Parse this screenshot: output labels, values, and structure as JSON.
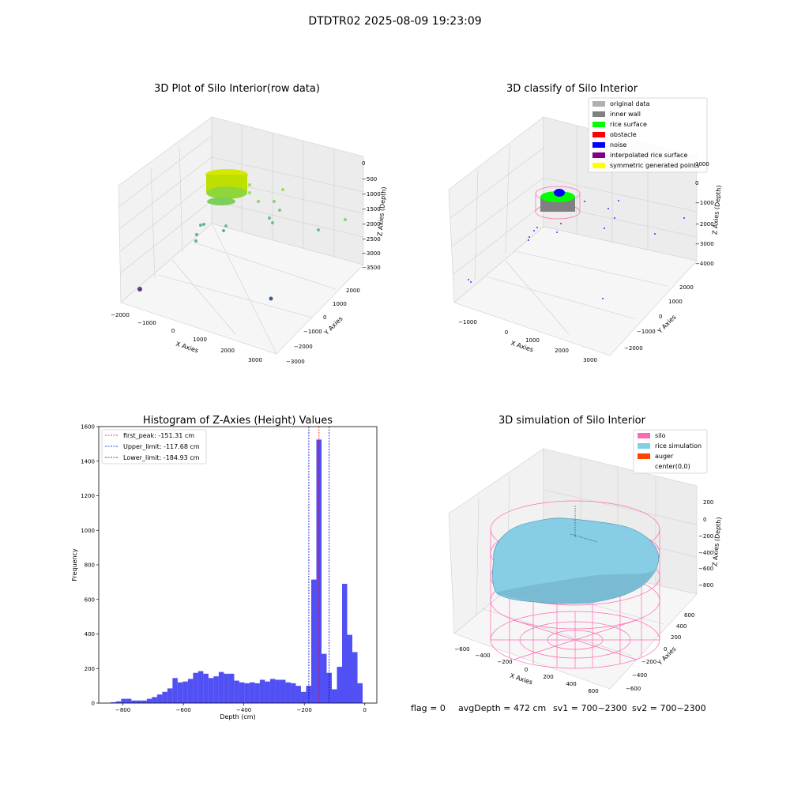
{
  "figure": {
    "suptitle": "DTDTR02 2025-08-09 19:23:09",
    "status": {
      "flag": "flag = 0",
      "avg": "avgDepth = 472 cm",
      "sv1": "sv1 = 700~2300",
      "sv2": "sv2 = 700~2300"
    }
  },
  "colors": {
    "hist_bar": "#5050f5",
    "first_peak": "#ff0000",
    "limits": "#0000cc",
    "silo": "#ff69b4",
    "rice_sim": "#87cde6",
    "auger": "#ff4500",
    "raw_points": "#a8e000",
    "inner_wall": "#808080",
    "rice_surface": "#00ff00",
    "noise": "#0000ff"
  },
  "chart_data": [
    {
      "type": "scatter3d",
      "title": "3D Plot of Silo Interior(row data)",
      "xlabel": "X Axies",
      "ylabel": "Y Axies",
      "zlabel": "Z Axies (Depth)",
      "xticks": [
        "−2000",
        "−1000",
        "0",
        "1000",
        "2000",
        "3000"
      ],
      "yticks": [
        "−3000",
        "−2000",
        "−1000",
        "0",
        "1000",
        "2000"
      ],
      "zticks": [
        "0",
        "−500",
        "−1000",
        "−1500",
        "−2000",
        "−2500",
        "−3000",
        "−3500"
      ]
    },
    {
      "type": "scatter3d",
      "title": "3D classify of Silo Interior",
      "xlabel": "X Axies",
      "ylabel": "Y Axies",
      "zlabel": "Z Axies (Depth)",
      "xticks": [
        "−1000",
        "0",
        "1000",
        "2000",
        "3000"
      ],
      "yticks": [
        "−2000",
        "−1000",
        "0",
        "1000",
        "2000"
      ],
      "zticks": [
        "1000",
        "0",
        "−1000",
        "−2000",
        "−3000",
        "−4000"
      ],
      "legend": [
        {
          "label": "original data",
          "color": "#b0b0b0"
        },
        {
          "label": "inner wall",
          "color": "#808080"
        },
        {
          "label": "rice surface",
          "color": "#00ff00"
        },
        {
          "label": "obstacle",
          "color": "#ff0000"
        },
        {
          "label": "noise",
          "color": "#0000ff"
        },
        {
          "label": "interpolated rice surface",
          "color": "#800080"
        },
        {
          "label": "symmetric generated points",
          "color": "#ffff00"
        }
      ]
    },
    {
      "type": "bar",
      "title": "Histogram of Z-Axies (Height) Values",
      "xlabel": "Depth (cm)",
      "ylabel": "Frequency",
      "xlim": [
        -880,
        40
      ],
      "ylim": [
        0,
        1600
      ],
      "bin_width": 17,
      "xticks": [
        -800,
        -600,
        -400,
        -200,
        0
      ],
      "yticks": [
        0,
        200,
        400,
        600,
        800,
        1000,
        1200,
        1400,
        1600
      ],
      "bins": [
        {
          "x": -840,
          "y": 5
        },
        {
          "x": -823,
          "y": 10
        },
        {
          "x": -806,
          "y": 25
        },
        {
          "x": -789,
          "y": 25
        },
        {
          "x": -772,
          "y": 15
        },
        {
          "x": -755,
          "y": 15
        },
        {
          "x": -738,
          "y": 15
        },
        {
          "x": -721,
          "y": 25
        },
        {
          "x": -704,
          "y": 35
        },
        {
          "x": -687,
          "y": 50
        },
        {
          "x": -670,
          "y": 65
        },
        {
          "x": -653,
          "y": 85
        },
        {
          "x": -636,
          "y": 145
        },
        {
          "x": -619,
          "y": 120
        },
        {
          "x": -602,
          "y": 125
        },
        {
          "x": -585,
          "y": 140
        },
        {
          "x": -568,
          "y": 175
        },
        {
          "x": -551,
          "y": 185
        },
        {
          "x": -534,
          "y": 170
        },
        {
          "x": -517,
          "y": 145
        },
        {
          "x": -500,
          "y": 155
        },
        {
          "x": -483,
          "y": 180
        },
        {
          "x": -466,
          "y": 170
        },
        {
          "x": -449,
          "y": 170
        },
        {
          "x": -432,
          "y": 130
        },
        {
          "x": -415,
          "y": 120
        },
        {
          "x": -398,
          "y": 115
        },
        {
          "x": -381,
          "y": 120
        },
        {
          "x": -364,
          "y": 115
        },
        {
          "x": -347,
          "y": 135
        },
        {
          "x": -330,
          "y": 125
        },
        {
          "x": -313,
          "y": 140
        },
        {
          "x": -296,
          "y": 135
        },
        {
          "x": -279,
          "y": 135
        },
        {
          "x": -262,
          "y": 120
        },
        {
          "x": -245,
          "y": 115
        },
        {
          "x": -228,
          "y": 100
        },
        {
          "x": -211,
          "y": 65
        },
        {
          "x": -194,
          "y": 100
        },
        {
          "x": -177,
          "y": 715
        },
        {
          "x": -160,
          "y": 1525
        },
        {
          "x": -143,
          "y": 285
        },
        {
          "x": -126,
          "y": 175
        },
        {
          "x": -109,
          "y": 80
        },
        {
          "x": -92,
          "y": 210
        },
        {
          "x": -75,
          "y": 690
        },
        {
          "x": -58,
          "y": 395
        },
        {
          "x": -41,
          "y": 295
        },
        {
          "x": -24,
          "y": 115
        }
      ],
      "vlines": [
        {
          "label": "first_peak: -151.31 cm",
          "x": -151.31,
          "color": "#ff0000"
        },
        {
          "label": "Upper_limit: -117.68 cm",
          "x": -117.68,
          "color": "#0000cc"
        },
        {
          "label": "Lower_limit: -184.93 cm",
          "x": -184.93,
          "color": "#0000cc"
        }
      ]
    },
    {
      "type": "surface3d",
      "title": "3D simulation of Silo Interior",
      "xlabel": "X Axies",
      "ylabel": "Y Axies",
      "zlabel": "Z Axies (Depth)",
      "xticks": [
        "−600",
        "−400",
        "−200",
        "0",
        "200",
        "400",
        "600"
      ],
      "yticks": [
        "−600",
        "−400",
        "−200",
        "0",
        "200",
        "400",
        "600"
      ],
      "zticks": [
        "200",
        "0",
        "−200",
        "−400",
        "−600",
        "−800"
      ],
      "legend": [
        {
          "label": "silo",
          "color": "#ff69b4"
        },
        {
          "label": "rice simulation",
          "color": "#87cde6"
        },
        {
          "label": "auger",
          "color": "#ff4500"
        },
        {
          "label": "center(0,0)",
          "color": ""
        }
      ]
    }
  ]
}
